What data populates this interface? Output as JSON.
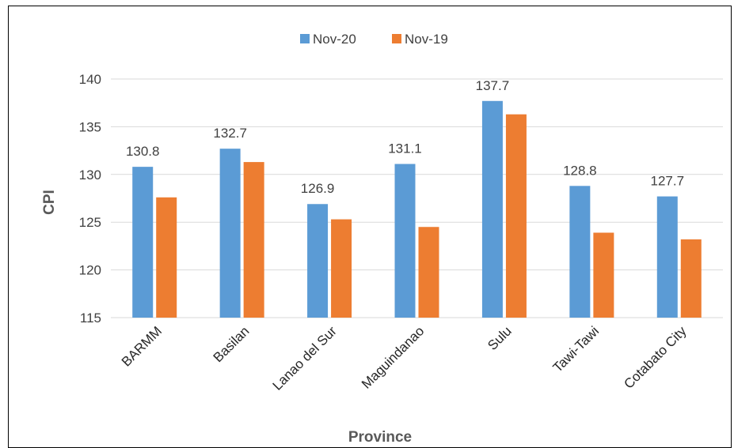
{
  "chart_data": {
    "type": "bar",
    "title": "",
    "xlabel": "Province",
    "ylabel": "CPI",
    "categories": [
      "BARMM",
      "Basilan",
      "Lanao del Sur",
      "Maguindanao",
      "Sulu",
      "Tawi-Tawi",
      "Cotabato City"
    ],
    "series": [
      {
        "name": "Nov-20",
        "color": "#5B9BD5",
        "values": [
          130.8,
          132.7,
          126.9,
          131.1,
          137.7,
          128.8,
          127.7
        ],
        "data_labels": [
          "130.8",
          "132.7",
          "126.9",
          "131.1",
          "137.7",
          "128.8",
          "127.7"
        ]
      },
      {
        "name": "Nov-19",
        "color": "#ED7D31",
        "values": [
          127.6,
          131.3,
          125.3,
          124.5,
          136.3,
          123.9,
          123.2
        ]
      }
    ],
    "ylim": [
      115,
      140
    ],
    "yticks": [
      115,
      120,
      125,
      130,
      135,
      140
    ],
    "grid": true,
    "legend_position": "top-center",
    "gridline_color": "#D9D9D9"
  }
}
